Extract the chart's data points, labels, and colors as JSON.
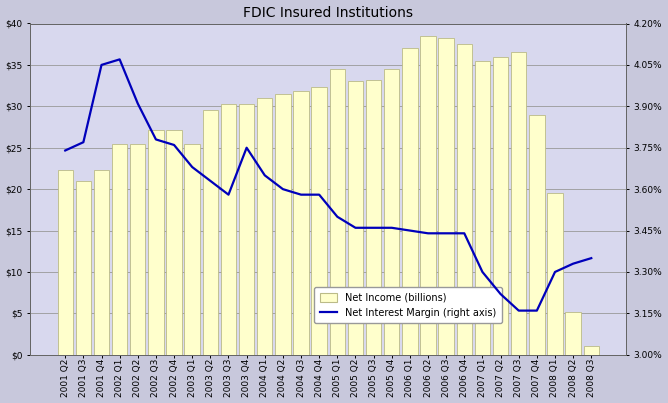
{
  "title": "FDIC Insured Institutions",
  "bar_labels": [
    "2001 Q2",
    "2001 Q3",
    "2001 Q4",
    "2002 Q1",
    "2002 Q2",
    "2002 Q3",
    "2002 Q4",
    "2003 Q1",
    "2003 Q2",
    "2003 Q3",
    "2003 Q4",
    "2004 Q1",
    "2004 Q2",
    "2004 Q3",
    "2004 Q4",
    "2005 Q1",
    "2005 Q2",
    "2005 Q3",
    "2005 Q4",
    "2006 Q1",
    "2006 Q2",
    "2006 Q3",
    "2006 Q4",
    "2007 Q1",
    "2007 Q2",
    "2007 Q3",
    "2007 Q4",
    "2008 Q1",
    "2008 Q2",
    "2008 Q3"
  ],
  "bar_values": [
    22.3,
    21.0,
    22.3,
    25.5,
    25.5,
    27.2,
    27.2,
    25.5,
    29.5,
    30.3,
    30.3,
    31.0,
    31.5,
    31.8,
    32.3,
    34.5,
    33.0,
    33.2,
    34.5,
    37.0,
    38.5,
    38.2,
    37.5,
    35.5,
    36.0,
    36.5,
    29.0,
    19.5,
    5.2,
    1.0
  ],
  "line_values": [
    3.74,
    3.77,
    4.05,
    4.07,
    3.91,
    3.78,
    3.76,
    3.68,
    3.63,
    3.58,
    3.75,
    3.65,
    3.6,
    3.58,
    3.58,
    3.5,
    3.46,
    3.46,
    3.46,
    3.45,
    3.44,
    3.44,
    3.44,
    3.3,
    3.22,
    3.16,
    3.16,
    3.3,
    3.33,
    3.35
  ],
  "bar_color": "#FFFFCC",
  "bar_edgecolor": "#BBBB88",
  "line_color": "#0000BB",
  "fig_facecolor": "#C8C8DC",
  "plot_facecolor": "#D8D8EE",
  "ylim_left": [
    0,
    40
  ],
  "ylim_right": [
    3.0,
    4.2
  ],
  "yticks_left": [
    0,
    5,
    10,
    15,
    20,
    25,
    30,
    35,
    40
  ],
  "ytick_labels_left": [
    "$0",
    "$5",
    "$10",
    "$15",
    "$20",
    "$25",
    "$30",
    "$35",
    "$40"
  ],
  "yticks_right": [
    3.0,
    3.15,
    3.3,
    3.45,
    3.6,
    3.75,
    3.9,
    4.05,
    4.2
  ],
  "ytick_labels_right": [
    "3.00%",
    "3.15%",
    "3.30%",
    "3.45%",
    "3.60%",
    "3.75%",
    "3.90%",
    "4.05%",
    "4.20%"
  ],
  "legend_bar_label": "Net Income (billions)",
  "legend_line_label": "Net Interest Margin (right axis)",
  "title_fontsize": 10,
  "tick_fontsize": 6.5,
  "grid_color": "#999999",
  "spine_color": "#666666"
}
